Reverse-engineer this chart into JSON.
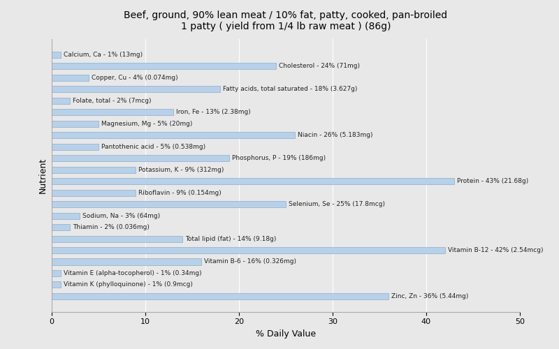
{
  "title": "Beef, ground, 90% lean meat / 10% fat, patty, cooked, pan-broiled\n1 patty ( yield from 1/4 lb raw meat ) (86g)",
  "xlabel": "% Daily Value",
  "ylabel": "Nutrient",
  "background_color": "#e8e8e8",
  "bar_color": "#b8d0e8",
  "bar_edge_color": "#8aaece",
  "xlim": [
    0,
    50
  ],
  "figsize": [
    8.0,
    5.0
  ],
  "dpi": 100,
  "nutrients": [
    {
      "label": "Calcium, Ca - 1% (13mg)",
      "value": 1
    },
    {
      "label": "Cholesterol - 24% (71mg)",
      "value": 24
    },
    {
      "label": "Copper, Cu - 4% (0.074mg)",
      "value": 4
    },
    {
      "label": "Fatty acids, total saturated - 18% (3.627g)",
      "value": 18
    },
    {
      "label": "Folate, total - 2% (7mcg)",
      "value": 2
    },
    {
      "label": "Iron, Fe - 13% (2.38mg)",
      "value": 13
    },
    {
      "label": "Magnesium, Mg - 5% (20mg)",
      "value": 5
    },
    {
      "label": "Niacin - 26% (5.183mg)",
      "value": 26
    },
    {
      "label": "Pantothenic acid - 5% (0.538mg)",
      "value": 5
    },
    {
      "label": "Phosphorus, P - 19% (186mg)",
      "value": 19
    },
    {
      "label": "Potassium, K - 9% (312mg)",
      "value": 9
    },
    {
      "label": "Protein - 43% (21.68g)",
      "value": 43
    },
    {
      "label": "Riboflavin - 9% (0.154mg)",
      "value": 9
    },
    {
      "label": "Selenium, Se - 25% (17.8mcg)",
      "value": 25
    },
    {
      "label": "Sodium, Na - 3% (64mg)",
      "value": 3
    },
    {
      "label": "Thiamin - 2% (0.036mg)",
      "value": 2
    },
    {
      "label": "Total lipid (fat) - 14% (9.18g)",
      "value": 14
    },
    {
      "label": "Vitamin B-12 - 42% (2.54mcg)",
      "value": 42
    },
    {
      "label": "Vitamin B-6 - 16% (0.326mg)",
      "value": 16
    },
    {
      "label": "Vitamin E (alpha-tocopherol) - 1% (0.34mg)",
      "value": 1
    },
    {
      "label": "Vitamin K (phylloquinone) - 1% (0.9mcg)",
      "value": 1
    },
    {
      "label": "Zinc, Zn - 36% (5.44mg)",
      "value": 36
    }
  ]
}
